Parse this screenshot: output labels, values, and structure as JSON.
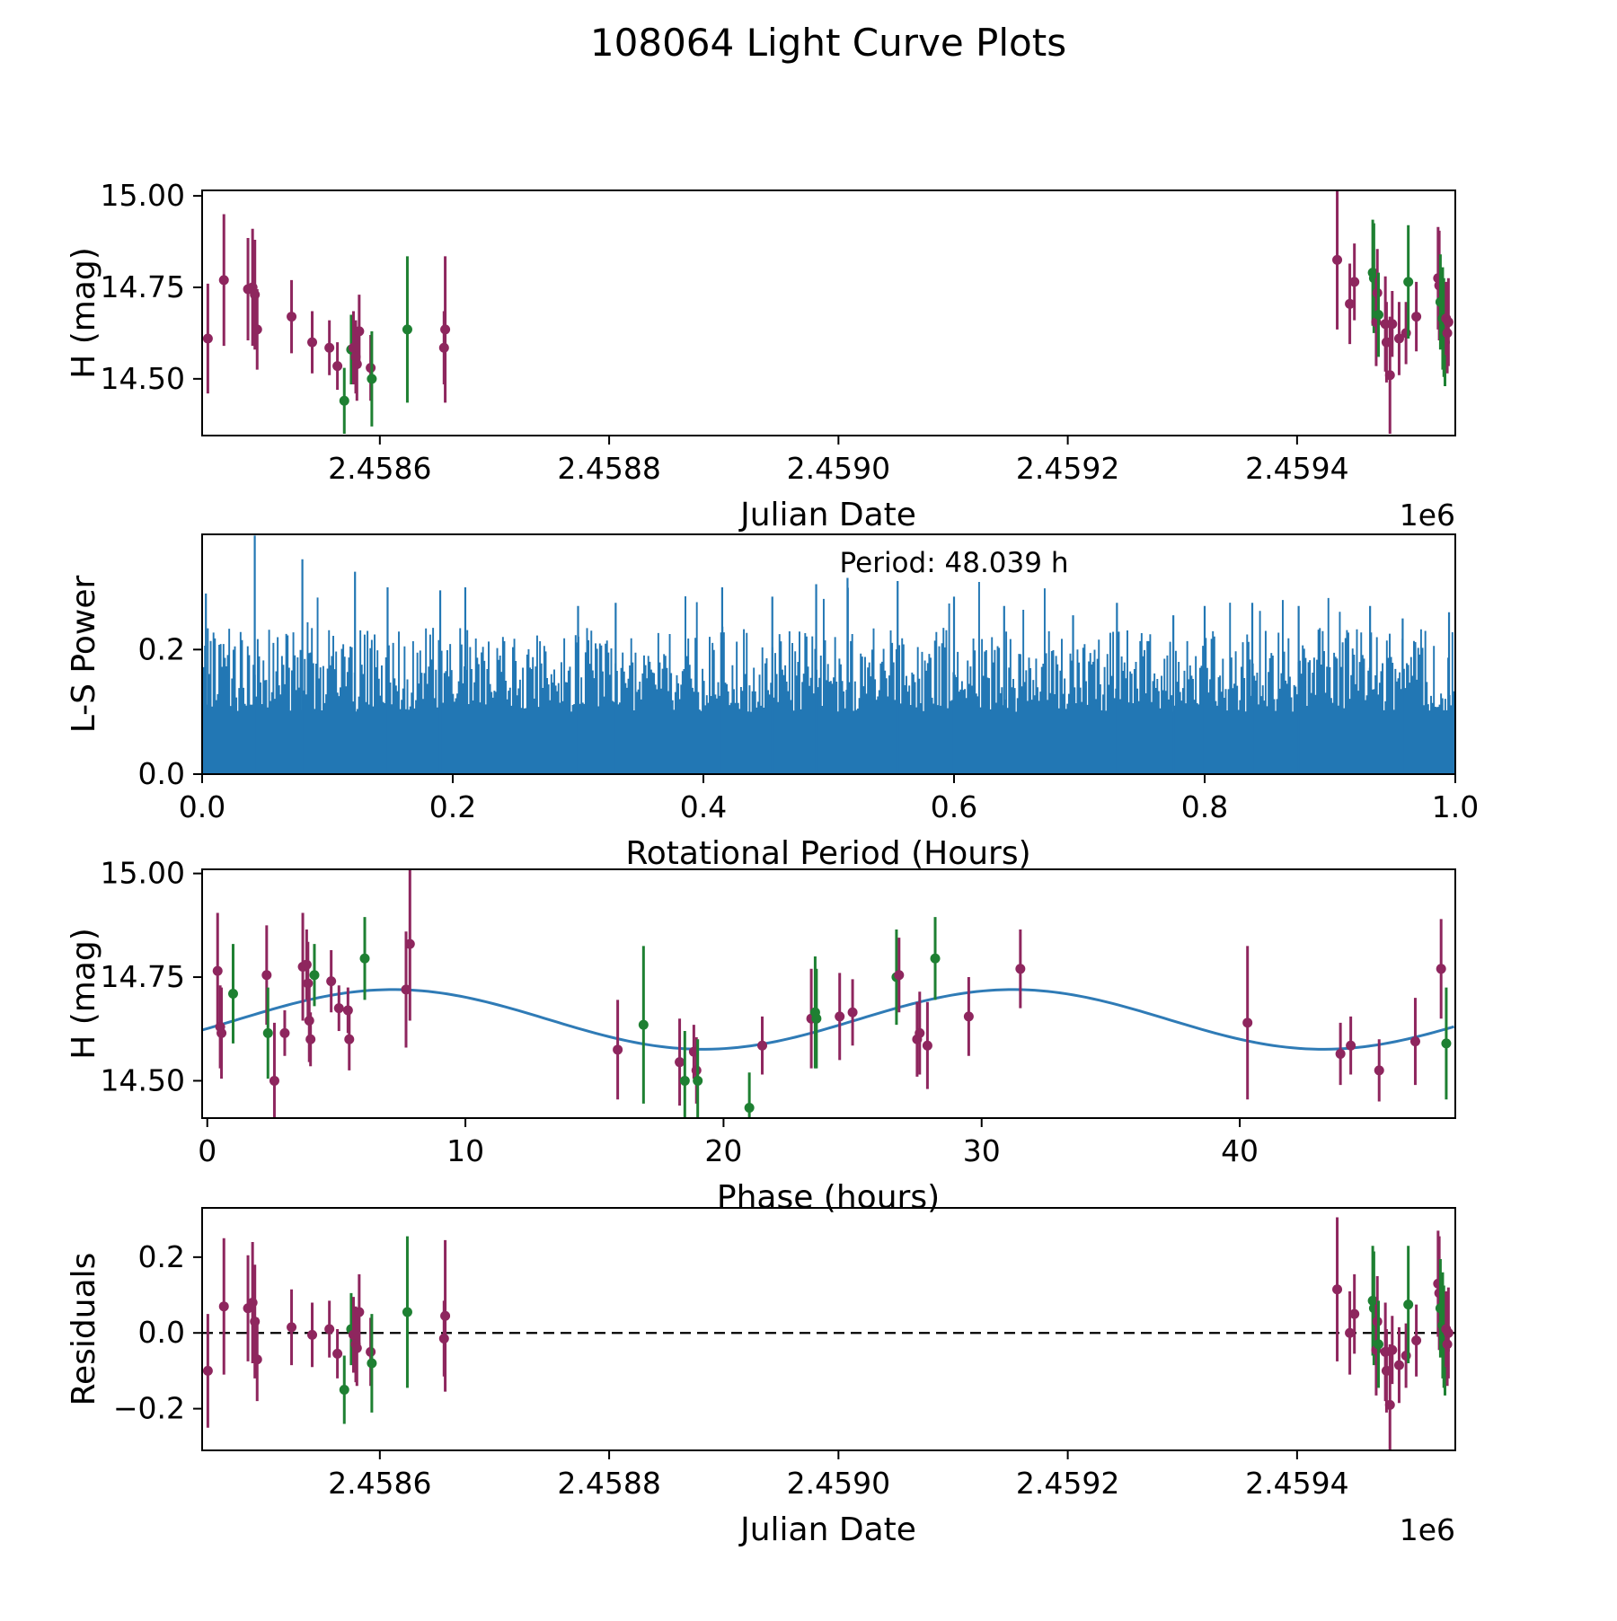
{
  "title": "108064 Light Curve Plots",
  "colors": {
    "purple": "#8e265e",
    "green": "#1e8032",
    "model_blue": "#2f7bb6",
    "power_blue": "#2277b4",
    "axis_black": "#000000"
  },
  "chart_data": [
    {
      "id": "lightcurve",
      "type": "scatter",
      "xlabel": "Julian Date",
      "ylabel": "H (mag)",
      "x_offset_label": "1e6",
      "xlim": [
        2458445,
        2459538
      ],
      "ylim": [
        14.345,
        15.015
      ],
      "xticks": [
        {
          "v": 2458600,
          "label": "2.4586"
        },
        {
          "v": 2458800,
          "label": "2.4588"
        },
        {
          "v": 2459000,
          "label": "2.4590"
        },
        {
          "v": 2459200,
          "label": "2.4592"
        },
        {
          "v": 2459400,
          "label": "2.4594"
        }
      ],
      "yticks": [
        {
          "v": 14.5,
          "label": "14.50"
        },
        {
          "v": 14.75,
          "label": "14.75"
        },
        {
          "v": 15.0,
          "label": "15.00"
        }
      ],
      "points": [
        [
          2458450,
          14.61,
          0.15,
          "p"
        ],
        [
          2458464,
          14.77,
          0.18,
          "p"
        ],
        [
          2458485,
          14.745,
          0.14,
          "p"
        ],
        [
          2458489,
          14.75,
          0.16,
          "p"
        ],
        [
          2458491,
          14.73,
          0.15,
          "p"
        ],
        [
          2458493,
          14.635,
          0.11,
          "p"
        ],
        [
          2458523,
          14.67,
          0.1,
          "p"
        ],
        [
          2458541,
          14.6,
          0.085,
          "p"
        ],
        [
          2458556,
          14.585,
          0.075,
          "p"
        ],
        [
          2458563,
          14.535,
          0.065,
          "p"
        ],
        [
          2458569,
          14.44,
          0.09,
          "g"
        ],
        [
          2458575,
          14.58,
          0.095,
          "g"
        ],
        [
          2458577,
          14.585,
          0.1,
          "p"
        ],
        [
          2458579,
          14.56,
          0.1,
          "p"
        ],
        [
          2458580,
          14.54,
          0.1,
          "p"
        ],
        [
          2458582,
          14.63,
          0.1,
          "p"
        ],
        [
          2458592,
          14.53,
          0.09,
          "p"
        ],
        [
          2458593,
          14.5,
          0.13,
          "g"
        ],
        [
          2458624,
          14.635,
          0.2,
          "g"
        ],
        [
          2458656,
          14.585,
          0.1,
          "p"
        ],
        [
          2458657,
          14.635,
          0.2,
          "p"
        ],
        [
          2459435,
          14.825,
          0.19,
          "p"
        ],
        [
          2459446,
          14.705,
          0.11,
          "p"
        ],
        [
          2459450,
          14.765,
          0.105,
          "p"
        ],
        [
          2459466,
          14.79,
          0.145,
          "g"
        ],
        [
          2459467,
          14.775,
          0.15,
          "g"
        ],
        [
          2459469,
          14.655,
          0.12,
          "p"
        ],
        [
          2459470,
          14.735,
          0.12,
          "p"
        ],
        [
          2459471,
          14.675,
          0.115,
          "g"
        ],
        [
          2459477,
          14.65,
          0.13,
          "p"
        ],
        [
          2459478,
          14.6,
          0.11,
          "p"
        ],
        [
          2459481,
          14.51,
          0.16,
          "p"
        ],
        [
          2459483,
          14.65,
          0.09,
          "p"
        ],
        [
          2459489,
          14.61,
          0.1,
          "p"
        ],
        [
          2459495,
          14.625,
          0.085,
          "p"
        ],
        [
          2459497,
          14.765,
          0.155,
          "g"
        ],
        [
          2459504,
          14.67,
          0.095,
          "p"
        ],
        [
          2459523,
          14.775,
          0.14,
          "p"
        ],
        [
          2459524,
          14.755,
          0.15,
          "p"
        ],
        [
          2459525,
          14.71,
          0.13,
          "g"
        ],
        [
          2459527,
          14.665,
          0.14,
          "g"
        ],
        [
          2459528,
          14.64,
          0.135,
          "g"
        ],
        [
          2459529,
          14.6,
          0.12,
          "g"
        ],
        [
          2459530,
          14.665,
          0.1,
          "p"
        ],
        [
          2459531,
          14.625,
          0.11,
          "p"
        ],
        [
          2459532,
          14.655,
          0.12,
          "p"
        ]
      ]
    },
    {
      "id": "periodogram",
      "type": "spikes",
      "annotation": "Period: 48.039 h",
      "xlabel": "Rotational Period (Hours)",
      "ylabel": "L-S Power",
      "xlim": [
        0,
        1
      ],
      "ylim": [
        0,
        0.385
      ],
      "xticks": [
        {
          "v": 0.0,
          "label": "0.0"
        },
        {
          "v": 0.2,
          "label": "0.2"
        },
        {
          "v": 0.4,
          "label": "0.4"
        },
        {
          "v": 0.6,
          "label": "0.6"
        },
        {
          "v": 0.8,
          "label": "0.8"
        },
        {
          "v": 1.0,
          "label": "1.0"
        }
      ],
      "yticks": [
        {
          "v": 0.0,
          "label": "0.0"
        },
        {
          "v": 0.2,
          "label": "0.2"
        }
      ],
      "n_spikes": 880,
      "seed": 42,
      "noise_base": 0.1,
      "noise_span": 0.135,
      "peaks": [
        [
          0.003,
          0.29
        ],
        [
          0.042,
          0.383
        ],
        [
          0.08,
          0.345
        ],
        [
          0.122,
          0.325
        ],
        [
          0.148,
          0.3
        ],
        [
          0.19,
          0.295
        ],
        [
          0.21,
          0.3
        ],
        [
          0.3,
          0.27
        ],
        [
          0.33,
          0.275
        ],
        [
          0.415,
          0.3
        ],
        [
          0.455,
          0.285
        ],
        [
          0.49,
          0.305
        ],
        [
          0.515,
          0.315
        ],
        [
          0.555,
          0.31
        ],
        [
          0.6,
          0.285
        ],
        [
          0.64,
          0.27
        ],
        [
          0.695,
          0.255
        ],
        [
          0.73,
          0.275
        ],
        [
          0.775,
          0.255
        ],
        [
          0.8,
          0.27
        ],
        [
          0.838,
          0.275
        ],
        [
          0.875,
          0.27
        ],
        [
          0.932,
          0.27
        ],
        [
          0.958,
          0.25
        ],
        [
          0.995,
          0.26
        ]
      ]
    },
    {
      "id": "phase",
      "type": "scatter",
      "xlabel": "Phase (hours)",
      "ylabel": "H (mag)",
      "xlim": [
        -0.2,
        48.35
      ],
      "ylim": [
        14.41,
        15.01
      ],
      "xticks": [
        {
          "v": 0,
          "label": "0"
        },
        {
          "v": 10,
          "label": "10"
        },
        {
          "v": 20,
          "label": "20"
        },
        {
          "v": 30,
          "label": "30"
        },
        {
          "v": 40,
          "label": "40"
        }
      ],
      "yticks": [
        {
          "v": 14.5,
          "label": "14.50"
        },
        {
          "v": 14.75,
          "label": "14.75"
        },
        {
          "v": 15.0,
          "label": "15.00"
        }
      ],
      "model": {
        "mean": 14.648,
        "amplitude": 0.072,
        "period_hours": 24.02,
        "x_peak": 7.2
      },
      "points": [
        [
          0.4,
          14.765,
          0.14,
          "p"
        ],
        [
          0.5,
          14.63,
          0.1,
          "p"
        ],
        [
          0.55,
          14.615,
          0.11,
          "p"
        ],
        [
          1.0,
          14.71,
          0.12,
          "g"
        ],
        [
          2.3,
          14.755,
          0.12,
          "p"
        ],
        [
          2.35,
          14.615,
          0.11,
          "g"
        ],
        [
          2.6,
          14.5,
          0.14,
          "p"
        ],
        [
          3.0,
          14.615,
          0.055,
          "p"
        ],
        [
          3.7,
          14.775,
          0.13,
          "p"
        ],
        [
          3.85,
          14.78,
          0.085,
          "p"
        ],
        [
          3.9,
          14.735,
          0.1,
          "p"
        ],
        [
          3.95,
          14.645,
          0.1,
          "p"
        ],
        [
          4.0,
          14.6,
          0.065,
          "p"
        ],
        [
          4.15,
          14.755,
          0.075,
          "g"
        ],
        [
          4.8,
          14.74,
          0.075,
          "p"
        ],
        [
          5.1,
          14.675,
          0.055,
          "p"
        ],
        [
          5.45,
          14.67,
          0.055,
          "p"
        ],
        [
          5.5,
          14.6,
          0.075,
          "p"
        ],
        [
          6.1,
          14.795,
          0.1,
          "g"
        ],
        [
          7.7,
          14.72,
          0.14,
          "p"
        ],
        [
          7.85,
          14.83,
          0.185,
          "p"
        ],
        [
          15.9,
          14.575,
          0.12,
          "p"
        ],
        [
          16.9,
          14.635,
          0.19,
          "g"
        ],
        [
          18.3,
          14.545,
          0.105,
          "p"
        ],
        [
          18.5,
          14.5,
          0.12,
          "g"
        ],
        [
          18.85,
          14.57,
          0.065,
          "p"
        ],
        [
          18.95,
          14.525,
          0.08,
          "p"
        ],
        [
          19.0,
          14.5,
          0.1,
          "g"
        ],
        [
          21.0,
          14.435,
          0.085,
          "g"
        ],
        [
          21.5,
          14.585,
          0.07,
          "p"
        ],
        [
          23.4,
          14.65,
          0.12,
          "p"
        ],
        [
          23.55,
          14.665,
          0.135,
          "g"
        ],
        [
          23.6,
          14.65,
          0.12,
          "g"
        ],
        [
          24.5,
          14.655,
          0.105,
          "p"
        ],
        [
          25.0,
          14.665,
          0.08,
          "p"
        ],
        [
          26.7,
          14.75,
          0.115,
          "g"
        ],
        [
          26.8,
          14.755,
          0.09,
          "p"
        ],
        [
          27.5,
          14.6,
          0.09,
          "p"
        ],
        [
          27.6,
          14.615,
          0.1,
          "p"
        ],
        [
          27.9,
          14.585,
          0.105,
          "p"
        ],
        [
          28.2,
          14.795,
          0.1,
          "g"
        ],
        [
          29.5,
          14.655,
          0.095,
          "p"
        ],
        [
          31.5,
          14.77,
          0.095,
          "p"
        ],
        [
          40.3,
          14.64,
          0.185,
          "p"
        ],
        [
          43.9,
          14.565,
          0.075,
          "p"
        ],
        [
          44.3,
          14.585,
          0.07,
          "p"
        ],
        [
          45.4,
          14.525,
          0.075,
          "p"
        ],
        [
          46.8,
          14.595,
          0.105,
          "p"
        ],
        [
          47.8,
          14.77,
          0.12,
          "p"
        ],
        [
          48.0,
          14.59,
          0.135,
          "g"
        ]
      ]
    },
    {
      "id": "residuals",
      "type": "scatter",
      "xlabel": "Julian Date",
      "ylabel": "Residuals",
      "x_offset_label": "1e6",
      "zero_line": true,
      "xlim": [
        2458445,
        2459538
      ],
      "ylim": [
        -0.31,
        0.33
      ],
      "xticks": [
        {
          "v": 2458600,
          "label": "2.4586"
        },
        {
          "v": 2458800,
          "label": "2.4588"
        },
        {
          "v": 2459000,
          "label": "2.4590"
        },
        {
          "v": 2459200,
          "label": "2.4592"
        },
        {
          "v": 2459400,
          "label": "2.4594"
        }
      ],
      "yticks": [
        {
          "v": -0.2,
          "label": "−0.2"
        },
        {
          "v": 0.0,
          "label": "0.0"
        },
        {
          "v": 0.2,
          "label": "0.2"
        }
      ],
      "points": [
        [
          2458450,
          -0.1,
          0.15,
          "p"
        ],
        [
          2458464,
          0.07,
          0.18,
          "p"
        ],
        [
          2458485,
          0.065,
          0.14,
          "p"
        ],
        [
          2458489,
          0.08,
          0.16,
          "p"
        ],
        [
          2458491,
          0.03,
          0.15,
          "p"
        ],
        [
          2458493,
          -0.07,
          0.11,
          "p"
        ],
        [
          2458523,
          0.015,
          0.1,
          "p"
        ],
        [
          2458541,
          -0.005,
          0.085,
          "p"
        ],
        [
          2458556,
          0.01,
          0.075,
          "p"
        ],
        [
          2458563,
          -0.055,
          0.065,
          "p"
        ],
        [
          2458569,
          -0.15,
          0.09,
          "g"
        ],
        [
          2458575,
          0.01,
          0.095,
          "g"
        ],
        [
          2458577,
          -0.005,
          0.1,
          "p"
        ],
        [
          2458579,
          -0.03,
          0.1,
          "p"
        ],
        [
          2458580,
          -0.04,
          0.1,
          "p"
        ],
        [
          2458582,
          0.055,
          0.1,
          "p"
        ],
        [
          2458592,
          -0.05,
          0.09,
          "p"
        ],
        [
          2458593,
          -0.08,
          0.13,
          "g"
        ],
        [
          2458624,
          0.055,
          0.2,
          "g"
        ],
        [
          2458656,
          -0.015,
          0.1,
          "p"
        ],
        [
          2458657,
          0.045,
          0.2,
          "p"
        ],
        [
          2459435,
          0.115,
          0.19,
          "p"
        ],
        [
          2459446,
          0.0,
          0.11,
          "p"
        ],
        [
          2459450,
          0.05,
          0.105,
          "p"
        ],
        [
          2459466,
          0.085,
          0.145,
          "g"
        ],
        [
          2459467,
          0.065,
          0.15,
          "g"
        ],
        [
          2459469,
          -0.045,
          0.12,
          "p"
        ],
        [
          2459470,
          0.03,
          0.12,
          "p"
        ],
        [
          2459471,
          -0.03,
          0.115,
          "g"
        ],
        [
          2459477,
          -0.05,
          0.13,
          "p"
        ],
        [
          2459478,
          -0.1,
          0.11,
          "p"
        ],
        [
          2459481,
          -0.19,
          0.16,
          "p"
        ],
        [
          2459483,
          -0.045,
          0.09,
          "p"
        ],
        [
          2459489,
          -0.085,
          0.1,
          "p"
        ],
        [
          2459495,
          -0.06,
          0.085,
          "p"
        ],
        [
          2459497,
          0.075,
          0.155,
          "g"
        ],
        [
          2459504,
          -0.02,
          0.095,
          "p"
        ],
        [
          2459523,
          0.13,
          0.14,
          "p"
        ],
        [
          2459524,
          0.105,
          0.15,
          "p"
        ],
        [
          2459525,
          0.065,
          0.13,
          "g"
        ],
        [
          2459527,
          0.02,
          0.14,
          "g"
        ],
        [
          2459528,
          -0.01,
          0.135,
          "g"
        ],
        [
          2459529,
          -0.045,
          0.12,
          "g"
        ],
        [
          2459530,
          0.01,
          0.1,
          "p"
        ],
        [
          2459531,
          -0.03,
          0.11,
          "p"
        ],
        [
          2459532,
          0.0,
          0.12,
          "p"
        ]
      ]
    }
  ]
}
